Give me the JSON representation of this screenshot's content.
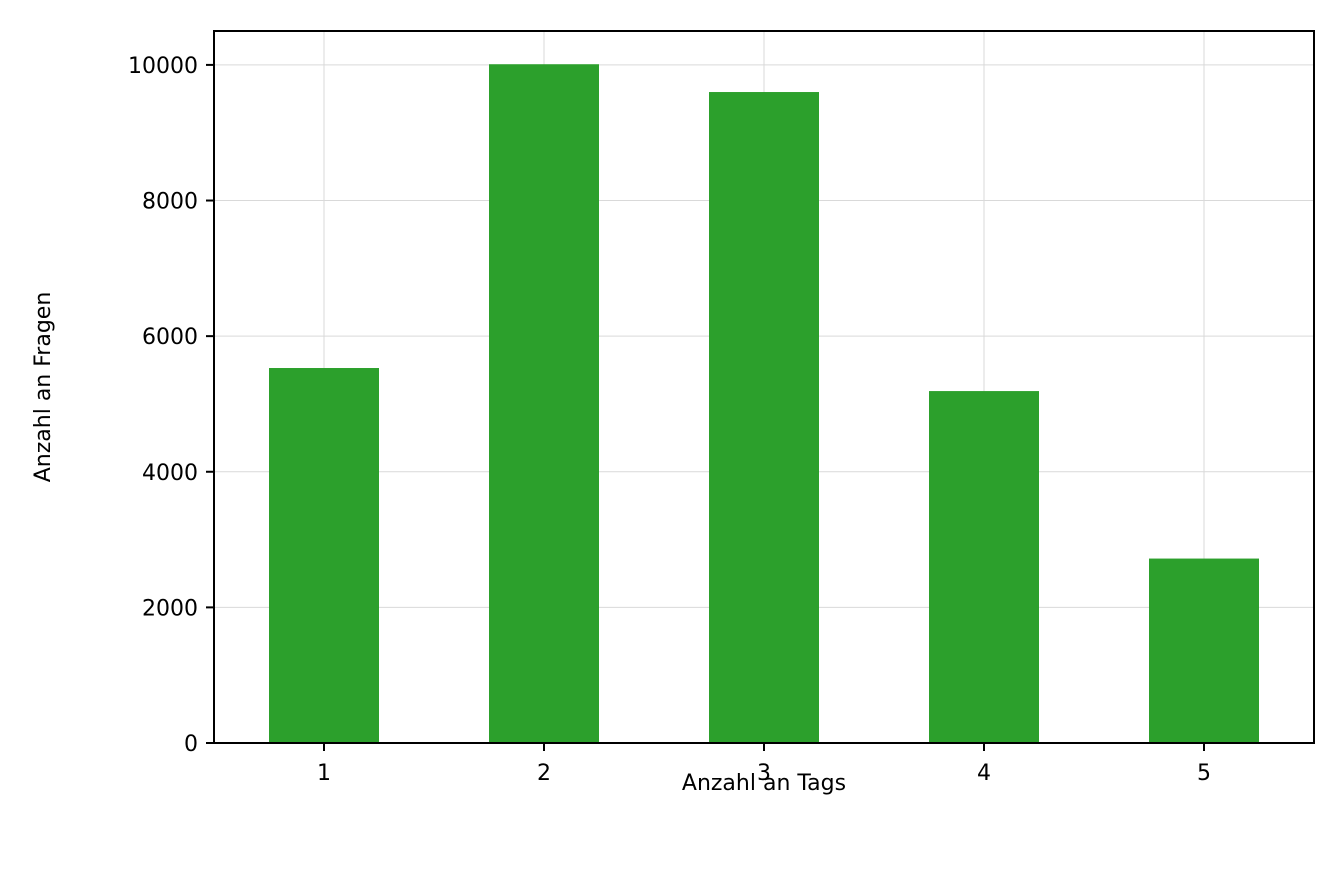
{
  "chart_data": {
    "type": "bar",
    "title": "",
    "xlabel": "Anzahl an Tags",
    "ylabel": "Anzahl an Fragen",
    "categories": [
      "1",
      "2",
      "3",
      "4",
      "5"
    ],
    "values": [
      5530,
      10010,
      9600,
      5190,
      2720
    ],
    "ylim": [
      0,
      10500
    ],
    "yticks": [
      0,
      2000,
      4000,
      6000,
      8000,
      10000
    ],
    "grid": true,
    "legend": "none",
    "bar_color": "#2ca02c",
    "grid_color": "#d9d9d9",
    "axis_color": "#000000"
  }
}
